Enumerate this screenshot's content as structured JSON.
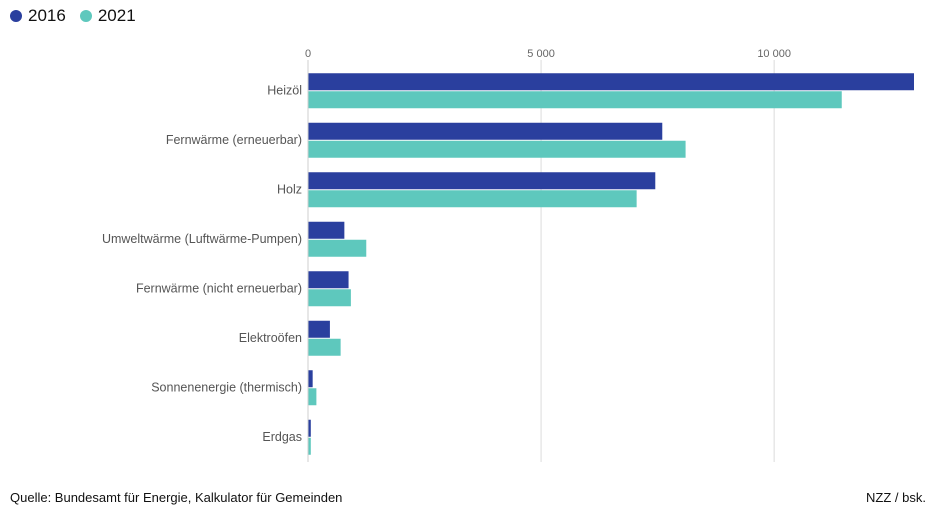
{
  "chart_data": {
    "type": "bar",
    "orientation": "horizontal",
    "categories": [
      "Heizöl",
      "Fernwärme (erneuerbar)",
      "Holz",
      "Umweltwärme (Luftwärme-Pumpen)",
      "Fernwärme (nicht erneuerbar)",
      "Elektroöfen",
      "Sonnenenergie (thermisch)",
      "Erdgas"
    ],
    "series": [
      {
        "name": "2016",
        "color": "#2a3f9e",
        "values": [
          13000,
          7600,
          7450,
          780,
          870,
          470,
          100,
          60
        ]
      },
      {
        "name": "2021",
        "color": "#5ec8bd",
        "values": [
          11450,
          8100,
          7050,
          1250,
          920,
          700,
          180,
          60
        ]
      }
    ],
    "xticks": [
      0,
      5000,
      10000
    ],
    "xtick_labels": [
      "0",
      "5 000",
      "10 000"
    ],
    "xlim": [
      0,
      13000
    ],
    "grid": true,
    "legend": "top-left"
  },
  "footer": {
    "source": "Quelle: Bundesamt für Energie, Kalkulator für Gemeinden",
    "credit": "NZZ / bsk."
  }
}
